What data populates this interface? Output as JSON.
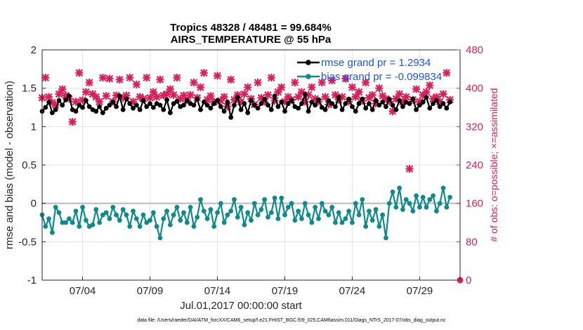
{
  "chart_data": {
    "type": "line",
    "title": "Tropics 48328 / 48481 = 99.684%",
    "subtitle": "AIRS_TEMPERATURE @ 55 hPa",
    "xlabel": "Jul.01,2017 00:00:00 start",
    "ylabel": "rmse and bias (model - observation)",
    "ylabel_right": "# of obs: o=possible; ×=assimilated",
    "footer": "data file: /Users/raeder/DAI/ATM_forcXX/CAM6_setup/f.e21.FHIST_BGC.f09_025.CAM6assim.011/Diags_NTrS_2017-07/obs_diag_output.nc",
    "xlim": [
      1,
      32
    ],
    "ylim": [
      -1,
      2
    ],
    "ylim_right": [
      0,
      480
    ],
    "xticks": [
      4,
      9,
      14,
      19,
      24,
      29
    ],
    "xtick_labels": [
      "07/04",
      "07/09",
      "07/14",
      "07/19",
      "07/24",
      "07/29"
    ],
    "yticks": [
      -1,
      -0.5,
      0,
      0.5,
      1,
      1.5,
      2
    ],
    "ytick_labels": [
      "-1",
      "-0.5",
      "0",
      "0.5",
      "1",
      "1.5",
      "2"
    ],
    "yticks_right": [
      0,
      80,
      160,
      240,
      320,
      400,
      480
    ],
    "ytick_labels_right": [
      "0",
      "80",
      "160",
      "240",
      "320",
      "400",
      "480"
    ],
    "grid": true,
    "legend_position": "top-right",
    "series": [
      {
        "name": "rmse grand pr = 1.2934",
        "color": "#000000",
        "axis": "left",
        "x_start": 1.0,
        "x_step": 0.25,
        "values": [
          1.2,
          1.25,
          1.32,
          1.18,
          1.22,
          1.34,
          1.28,
          1.35,
          1.4,
          1.22,
          1.2,
          1.28,
          1.25,
          1.34,
          1.26,
          1.22,
          1.2,
          1.26,
          1.18,
          1.24,
          1.28,
          1.32,
          1.26,
          1.4,
          1.22,
          1.36,
          1.3,
          1.24,
          1.28,
          1.22,
          1.34,
          1.26,
          1.3,
          1.25,
          1.3,
          1.28,
          1.22,
          1.35,
          1.18,
          1.3,
          1.33,
          1.26,
          1.28,
          1.34,
          1.3,
          1.28,
          1.36,
          1.22,
          1.32,
          1.28,
          1.24,
          1.3,
          1.34,
          1.26,
          1.2,
          1.32,
          1.12,
          1.28,
          1.38,
          1.22,
          1.3,
          1.18,
          1.34,
          1.28,
          1.24,
          1.3,
          1.36,
          1.28,
          1.22,
          1.4,
          1.26,
          1.32,
          1.2,
          1.3,
          1.34,
          1.26,
          1.24,
          1.3,
          1.42,
          1.2,
          1.32,
          1.28,
          1.35,
          1.25,
          1.22,
          1.34,
          1.3,
          1.26,
          1.38,
          1.22,
          1.3,
          1.36,
          1.26,
          1.2,
          1.3,
          1.36,
          1.24,
          1.3,
          1.22,
          1.34,
          1.28,
          1.32,
          1.26,
          1.36,
          1.28,
          1.22,
          1.34,
          1.26,
          1.32,
          1.3,
          1.36,
          1.22,
          1.28,
          1.32,
          1.38,
          1.24,
          1.3,
          1.34,
          1.26,
          1.3,
          1.24,
          1.32
        ]
      },
      {
        "name": "bias grand pr = -0.099834",
        "color": "#0f8a8a",
        "axis": "left",
        "x_start": 1.0,
        "x_step": 0.25,
        "values": [
          -0.15,
          -0.3,
          -0.2,
          -0.38,
          -0.05,
          -0.12,
          -0.25,
          -0.25,
          -0.2,
          -0.25,
          -0.1,
          -0.3,
          -0.05,
          -0.22,
          -0.3,
          -0.28,
          -0.08,
          -0.25,
          -0.15,
          -0.12,
          -0.2,
          -0.05,
          -0.15,
          -0.22,
          -0.08,
          -0.15,
          -0.3,
          -0.1,
          -0.2,
          -0.3,
          -0.15,
          -0.25,
          -0.22,
          -0.12,
          -0.3,
          -0.45,
          -0.2,
          -0.1,
          -0.28,
          -0.15,
          -0.05,
          -0.22,
          -0.12,
          -0.25,
          -0.05,
          -0.3,
          -0.18,
          0.05,
          -0.1,
          -0.2,
          -0.08,
          -0.3,
          -0.12,
          0.0,
          -0.25,
          -0.15,
          -0.1,
          0.05,
          -0.18,
          -0.05,
          -0.28,
          -0.12,
          -0.22,
          0.0,
          -0.15,
          -0.08,
          0.05,
          -0.18,
          -0.12,
          0.07,
          -0.2,
          0.07,
          -0.15,
          -0.05,
          0.0,
          -0.22,
          -0.1,
          -0.2,
          0.0,
          -0.15,
          -0.25,
          -0.05,
          -0.2,
          0.0,
          -0.1,
          -0.15,
          -0.05,
          -0.25,
          -0.12,
          -0.25,
          -0.2,
          -0.1,
          -0.25,
          0.0,
          -0.15,
          0.05,
          -0.3,
          -0.1,
          -0.22,
          -0.08,
          -0.3,
          -0.15,
          -0.45,
          0.0,
          0.15,
          -0.05,
          0.2,
          -0.08,
          0.05,
          0.0,
          -0.1,
          0.1,
          -0.05,
          0.08,
          -0.05,
          0.05,
          0.1,
          -0.1,
          0.0,
          0.2,
          -0.05,
          0.08
        ]
      },
      {
        "name": "obs assimilated",
        "color": "#d81e5b",
        "axis": "right",
        "x_start": 1.0,
        "x_step": 0.25,
        "values": [
          380,
          422,
          382,
          370,
          365,
          388,
          398,
          385,
          378,
          330,
          372,
          432,
          375,
          392,
          412,
          388,
          382,
          372,
          422,
          384,
          420,
          372,
          385,
          418,
          380,
          385,
          422,
          372,
          408,
          382,
          378,
          422,
          380,
          392,
          382,
          418,
          385,
          388,
          398,
          386,
          422,
          378,
          385,
          375,
          386,
          412,
          380,
          402,
          432,
          376,
          384,
          372,
          426,
          374,
          382,
          362,
          418,
          376,
          386,
          372,
          388,
          402,
          378,
          366,
          412,
          380,
          372,
          386,
          422,
          374,
          392,
          402,
          372,
          382,
          376,
          412,
          382,
          392,
          372,
          386,
          402,
          378,
          372,
          412,
          382,
          366,
          416,
          386,
          376,
          382,
          420,
          372,
          402,
          382,
          392,
          374,
          412,
          380,
          386,
          368,
          400,
          384,
          378,
          372,
          352,
          378,
          388,
          372,
          382,
          232,
          376,
          398,
          372,
          386,
          392,
          406,
          378,
          382,
          372,
          388,
          432,
          376
        ]
      }
    ]
  }
}
